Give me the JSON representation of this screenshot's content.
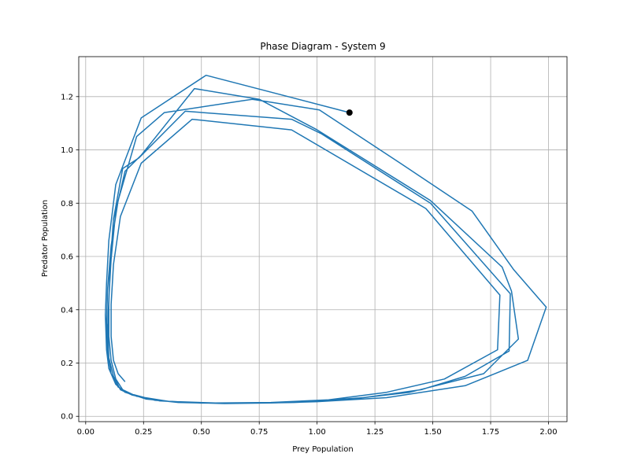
{
  "chart_data": {
    "type": "line",
    "title": "Phase Diagram - System 9",
    "xlabel": "Prey Population",
    "ylabel": "Predator Population",
    "xlim": [
      -0.03,
      2.08
    ],
    "ylim": [
      -0.02,
      1.35
    ],
    "xticks": [
      0.0,
      0.25,
      0.5,
      0.75,
      1.0,
      1.25,
      1.5,
      1.75,
      2.0
    ],
    "xtick_labels": [
      "0.00",
      "0.25",
      "0.50",
      "0.75",
      "1.00",
      "1.25",
      "1.50",
      "1.75",
      "2.00"
    ],
    "yticks": [
      0.0,
      0.2,
      0.4,
      0.6,
      0.8,
      1.0,
      1.2
    ],
    "ytick_labels": [
      "0.0",
      "0.2",
      "0.4",
      "0.6",
      "0.8",
      "1.0",
      "1.2"
    ],
    "grid": true,
    "line_color": "#1f77b4",
    "marker_color": "#000000",
    "series": [
      {
        "points": [
          [
            1.14,
            1.14
          ],
          [
            0.52,
            1.28
          ],
          [
            0.24,
            1.12
          ],
          [
            0.13,
            0.87
          ],
          [
            0.1,
            0.66
          ],
          [
            0.09,
            0.5
          ],
          [
            0.085,
            0.38
          ],
          [
            0.09,
            0.25
          ],
          [
            0.1,
            0.18
          ],
          [
            0.13,
            0.12
          ],
          [
            0.17,
            0.09
          ],
          [
            0.26,
            0.065
          ],
          [
            0.4,
            0.052
          ],
          [
            0.6,
            0.048
          ],
          [
            0.8,
            0.05
          ],
          [
            1.0,
            0.055
          ],
          [
            1.3,
            0.07
          ],
          [
            1.64,
            0.115
          ],
          [
            1.91,
            0.21
          ],
          [
            1.99,
            0.41
          ],
          [
            1.85,
            0.55
          ],
          [
            1.67,
            0.77
          ],
          [
            1.36,
            0.95
          ],
          [
            1.01,
            1.15
          ],
          [
            0.72,
            1.19
          ],
          [
            0.34,
            1.14
          ],
          [
            0.22,
            1.05
          ],
          [
            0.14,
            0.81
          ],
          [
            0.11,
            0.64
          ],
          [
            0.095,
            0.48
          ],
          [
            0.09,
            0.35
          ],
          [
            0.095,
            0.24
          ],
          [
            0.11,
            0.16
          ],
          [
            0.14,
            0.11
          ],
          [
            0.19,
            0.085
          ],
          [
            0.3,
            0.06
          ],
          [
            0.48,
            0.05
          ],
          [
            0.7,
            0.049
          ],
          [
            0.9,
            0.052
          ],
          [
            1.1,
            0.06
          ],
          [
            1.4,
            0.09
          ],
          [
            1.72,
            0.16
          ],
          [
            1.87,
            0.29
          ],
          [
            1.84,
            0.47
          ],
          [
            1.8,
            0.56
          ],
          [
            1.49,
            0.81
          ],
          [
            1.0,
            1.075
          ],
          [
            0.75,
            1.19
          ],
          [
            0.47,
            1.23
          ],
          [
            0.24,
            0.98
          ],
          [
            0.17,
            0.92
          ],
          [
            0.13,
            0.77
          ],
          [
            0.11,
            0.59
          ],
          [
            0.1,
            0.44
          ],
          [
            0.095,
            0.33
          ],
          [
            0.1,
            0.22
          ],
          [
            0.12,
            0.15
          ],
          [
            0.15,
            0.1
          ],
          [
            0.2,
            0.08
          ],
          [
            0.32,
            0.058
          ],
          [
            0.52,
            0.05
          ],
          [
            0.75,
            0.05
          ],
          [
            0.95,
            0.055
          ],
          [
            1.2,
            0.07
          ],
          [
            1.45,
            0.1
          ],
          [
            1.64,
            0.15
          ],
          [
            1.83,
            0.245
          ],
          [
            1.835,
            0.46
          ],
          [
            1.49,
            0.8
          ],
          [
            1.02,
            1.06
          ],
          [
            0.89,
            1.115
          ],
          [
            0.43,
            1.145
          ],
          [
            0.23,
            0.97
          ],
          [
            0.16,
            0.93
          ],
          [
            0.12,
            0.74
          ],
          [
            0.105,
            0.56
          ],
          [
            0.1,
            0.42
          ],
          [
            0.1,
            0.3
          ],
          [
            0.11,
            0.21
          ],
          [
            0.13,
            0.14
          ],
          [
            0.16,
            0.1
          ],
          [
            0.22,
            0.075
          ],
          [
            0.36,
            0.056
          ],
          [
            0.56,
            0.05
          ],
          [
            0.8,
            0.052
          ],
          [
            1.05,
            0.062
          ],
          [
            1.3,
            0.09
          ],
          [
            1.55,
            0.14
          ],
          [
            1.78,
            0.25
          ],
          [
            1.79,
            0.455
          ],
          [
            1.47,
            0.78
          ],
          [
            0.89,
            1.075
          ],
          [
            0.46,
            1.115
          ],
          [
            0.24,
            0.95
          ],
          [
            0.15,
            0.75
          ],
          [
            0.12,
            0.57
          ],
          [
            0.11,
            0.42
          ],
          [
            0.11,
            0.3
          ],
          [
            0.12,
            0.21
          ],
          [
            0.14,
            0.16
          ],
          [
            0.17,
            0.13
          ]
        ]
      }
    ],
    "start_point": [
      1.14,
      1.14
    ]
  }
}
